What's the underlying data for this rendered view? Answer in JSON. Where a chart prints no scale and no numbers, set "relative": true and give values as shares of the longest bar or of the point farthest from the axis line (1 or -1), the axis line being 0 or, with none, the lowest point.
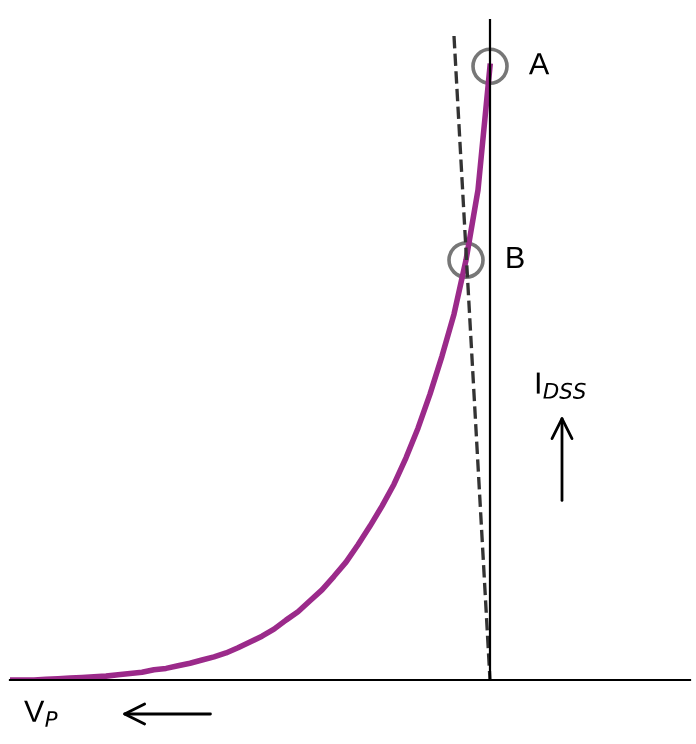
{
  "chart_data": {
    "type": "line",
    "relative": true,
    "tick_labels": false,
    "legend": false,
    "categories": [
      null,
      null,
      null,
      null,
      null,
      null,
      null,
      null,
      null,
      null,
      null,
      null,
      null,
      null,
      null,
      null,
      null,
      null,
      null,
      null,
      null,
      null,
      null,
      null,
      null,
      null,
      null,
      null,
      null,
      null,
      null,
      null,
      null,
      null,
      null,
      null,
      null,
      null,
      null,
      null,
      null
    ],
    "series": [
      {
        "color": "#9b2a8a",
        "line_style": "solid",
        "values": [
          0,
          0,
          0,
          0.001,
          0.002,
          0.003,
          0.004,
          0.005,
          0.006,
          0.008,
          0.01,
          0.012,
          0.016,
          0.018,
          0.022,
          0.026,
          0.031,
          0.036,
          0.042,
          0.05,
          0.059,
          0.068,
          0.079,
          0.093,
          0.106,
          0.123,
          0.14,
          0.161,
          0.183,
          0.21,
          0.239,
          0.27,
          0.304,
          0.345,
          0.391,
          0.444,
          0.503,
          0.568,
          0.652,
          0.761,
          0.953
        ]
      },
      {
        "color": "#333333",
        "line_style": "dashed",
        "values": [
          null,
          null,
          null,
          null,
          null,
          null,
          null,
          null,
          null,
          null,
          null,
          null,
          null,
          null,
          null,
          null,
          null,
          null,
          null,
          null,
          null,
          null,
          null,
          null,
          null,
          null,
          null,
          null,
          null,
          null,
          null,
          null,
          null,
          null,
          null,
          null,
          null,
          1,
          null,
          null,
          0
        ]
      }
    ],
    "annotations": [
      "A",
      "B",
      "I$_{DSS}$",
      "V$_{P}$"
    ]
  }
}
